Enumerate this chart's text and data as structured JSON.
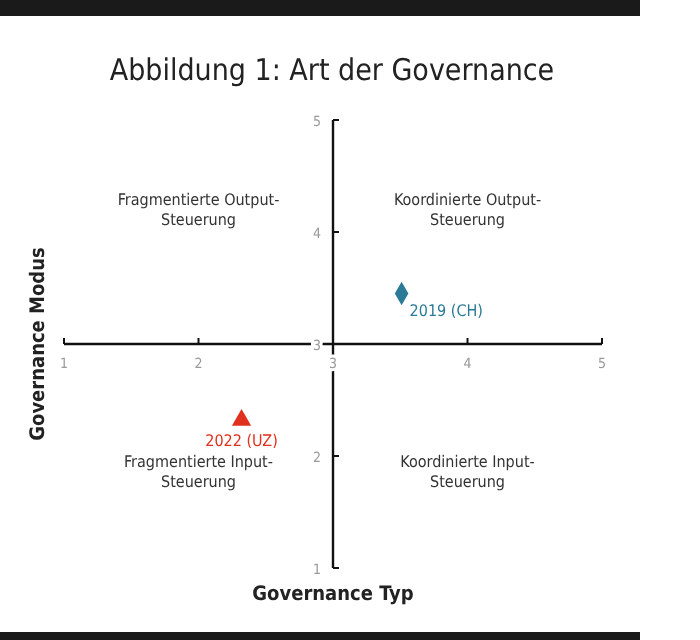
{
  "chart_data": {
    "type": "scatter",
    "title": "Abbildung 1: Art der Governance",
    "xlabel": "Governance Typ",
    "ylabel": "Governance Modus",
    "xlim": [
      1,
      5
    ],
    "ylim": [
      1,
      5
    ],
    "xticks": [
      1,
      2,
      3,
      4,
      5
    ],
    "yticks": [
      1,
      2,
      3,
      4,
      5
    ],
    "grid": false,
    "series": [
      {
        "name": "2019 (CH)",
        "color": "#2b7a98",
        "marker": "diamond",
        "x": [
          3.51
        ],
        "values": [
          3.45
        ]
      },
      {
        "name": "2022 (UZ)",
        "color": "#e0301e",
        "marker": "triangle",
        "x": [
          2.32
        ],
        "values": [
          2.32
        ]
      }
    ],
    "annotations": [
      "Fragmentierte Output-\nSteuerung",
      "Koordinierte Output-\nSteuerung",
      "Fragmentierte Input-\nSteuerung",
      "Koordinierte Input-\nSteuerung"
    ]
  }
}
